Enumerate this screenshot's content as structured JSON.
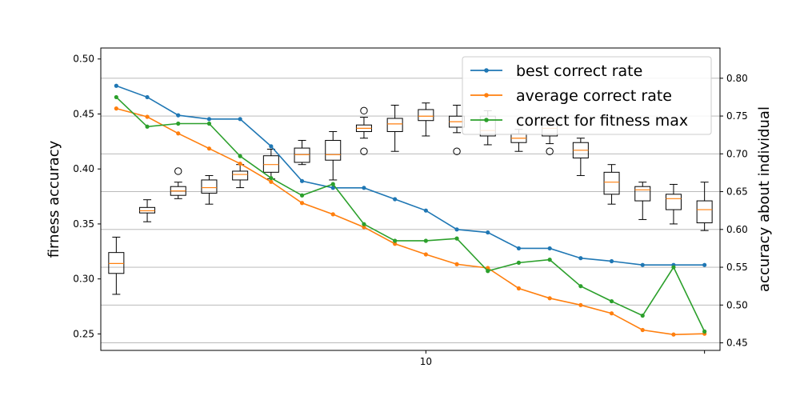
{
  "chart_data": {
    "type": "line+box",
    "title": "",
    "x_axis": {
      "ticks": [
        10
      ]
    },
    "left_axis": {
      "label": "firness accuracy",
      "range": [
        0.235,
        0.51
      ],
      "ticks": [
        0.25,
        0.3,
        0.35,
        0.4,
        0.45,
        0.5
      ],
      "tick_labels": [
        "0.25",
        "0.30",
        "0.35",
        "0.40",
        "0.45",
        "0.50"
      ]
    },
    "right_axis": {
      "label": "accuracy about individual",
      "range": [
        0.44,
        0.84
      ],
      "ticks": [
        0.45,
        0.5,
        0.55,
        0.6,
        0.65,
        0.7,
        0.75,
        0.8
      ],
      "tick_labels": [
        "0.45",
        "0.50",
        "0.55",
        "0.60",
        "0.65",
        "0.70",
        "0.75",
        "0.80"
      ],
      "grid": true
    },
    "x_range": [
      -0.5,
      19.5
    ],
    "legend_position": "upper-right",
    "series": [
      {
        "name": "best correct rate",
        "color": "#1f77b4",
        "axis": "right",
        "x": [
          0,
          1,
          2,
          3,
          4,
          5,
          6,
          7,
          8,
          9,
          10,
          11,
          12,
          13,
          14,
          15,
          16,
          17,
          18,
          19
        ],
        "values": [
          0.79,
          0.775,
          0.751,
          0.746,
          0.746,
          0.71,
          0.664,
          0.655,
          0.655,
          0.64,
          0.625,
          0.6,
          0.596,
          0.575,
          0.575,
          0.562,
          0.558,
          0.553,
          0.553,
          0.553
        ]
      },
      {
        "name": "average correct rate",
        "color": "#ff7f0e",
        "axis": "right",
        "x": [
          0,
          1,
          2,
          3,
          4,
          5,
          6,
          7,
          8,
          9,
          10,
          11,
          12,
          13,
          14,
          15,
          16,
          17,
          18,
          19
        ],
        "values": [
          0.76,
          0.749,
          0.727,
          0.707,
          0.687,
          0.663,
          0.635,
          0.62,
          0.603,
          0.581,
          0.567,
          0.554,
          0.549,
          0.522,
          0.509,
          0.5,
          0.489,
          0.467,
          0.461,
          0.462
        ]
      },
      {
        "name": "correct for fitness max",
        "color": "#2ca02c",
        "axis": "right",
        "x": [
          0,
          1,
          2,
          3,
          4,
          5,
          6,
          7,
          8,
          9,
          10,
          11,
          12,
          13,
          14,
          15,
          16,
          17,
          18,
          19
        ],
        "values": [
          0.775,
          0.736,
          0.74,
          0.74,
          0.697,
          0.668,
          0.645,
          0.66,
          0.607,
          0.585,
          0.585,
          0.588,
          0.545,
          0.556,
          0.56,
          0.525,
          0.505,
          0.486,
          0.55,
          0.465
        ]
      }
    ],
    "boxplots": {
      "axis": "left",
      "median_color": "#ff7f0e",
      "boxes": [
        {
          "x": 0,
          "whisker_low": 0.286,
          "q1": 0.305,
          "median": 0.314,
          "q3": 0.324,
          "whisker_high": 0.338,
          "outliers": []
        },
        {
          "x": 1,
          "whisker_low": 0.352,
          "q1": 0.36,
          "median": 0.362,
          "q3": 0.365,
          "whisker_high": 0.372,
          "outliers": []
        },
        {
          "x": 2,
          "whisker_low": 0.373,
          "q1": 0.376,
          "median": 0.38,
          "q3": 0.384,
          "whisker_high": 0.388,
          "outliers": [
            0.398
          ]
        },
        {
          "x": 3,
          "whisker_low": 0.368,
          "q1": 0.378,
          "median": 0.383,
          "q3": 0.39,
          "whisker_high": 0.394,
          "outliers": []
        },
        {
          "x": 4,
          "whisker_low": 0.383,
          "q1": 0.39,
          "median": 0.395,
          "q3": 0.398,
          "whisker_high": 0.404,
          "outliers": []
        },
        {
          "x": 5,
          "whisker_low": 0.391,
          "q1": 0.397,
          "median": 0.404,
          "q3": 0.412,
          "whisker_high": 0.418,
          "outliers": []
        },
        {
          "x": 6,
          "whisker_low": 0.404,
          "q1": 0.406,
          "median": 0.413,
          "q3": 0.419,
          "whisker_high": 0.426,
          "outliers": []
        },
        {
          "x": 7,
          "whisker_low": 0.39,
          "q1": 0.408,
          "median": 0.413,
          "q3": 0.426,
          "whisker_high": 0.434,
          "outliers": []
        },
        {
          "x": 8,
          "whisker_low": 0.428,
          "q1": 0.434,
          "median": 0.437,
          "q3": 0.44,
          "whisker_high": 0.447,
          "outliers": [
            0.453,
            0.416
          ]
        },
        {
          "x": 9,
          "whisker_low": 0.416,
          "q1": 0.434,
          "median": 0.441,
          "q3": 0.446,
          "whisker_high": 0.458,
          "outliers": []
        },
        {
          "x": 10,
          "whisker_low": 0.43,
          "q1": 0.444,
          "median": 0.448,
          "q3": 0.454,
          "whisker_high": 0.46,
          "outliers": []
        },
        {
          "x": 11,
          "whisker_low": 0.433,
          "q1": 0.438,
          "median": 0.443,
          "q3": 0.448,
          "whisker_high": 0.458,
          "outliers": [
            0.416
          ]
        },
        {
          "x": 12,
          "whisker_low": 0.422,
          "q1": 0.43,
          "median": 0.435,
          "q3": 0.448,
          "whisker_high": 0.453,
          "outliers": []
        },
        {
          "x": 13,
          "whisker_low": 0.416,
          "q1": 0.424,
          "median": 0.428,
          "q3": 0.432,
          "whisker_high": 0.436,
          "outliers": []
        },
        {
          "x": 14,
          "whisker_low": 0.423,
          "q1": 0.43,
          "median": 0.437,
          "q3": 0.44,
          "whisker_high": 0.444,
          "outliers": [
            0.416
          ]
        },
        {
          "x": 15,
          "whisker_low": 0.394,
          "q1": 0.41,
          "median": 0.417,
          "q3": 0.424,
          "whisker_high": 0.428,
          "outliers": []
        },
        {
          "x": 16,
          "whisker_low": 0.368,
          "q1": 0.377,
          "median": 0.388,
          "q3": 0.397,
          "whisker_high": 0.404,
          "outliers": []
        },
        {
          "x": 17,
          "whisker_low": 0.354,
          "q1": 0.371,
          "median": 0.381,
          "q3": 0.384,
          "whisker_high": 0.388,
          "outliers": []
        },
        {
          "x": 18,
          "whisker_low": 0.35,
          "q1": 0.363,
          "median": 0.373,
          "q3": 0.377,
          "whisker_high": 0.386,
          "outliers": []
        },
        {
          "x": 19,
          "whisker_low": 0.344,
          "q1": 0.351,
          "median": 0.363,
          "q3": 0.371,
          "whisker_high": 0.388,
          "outliers": []
        }
      ]
    }
  }
}
